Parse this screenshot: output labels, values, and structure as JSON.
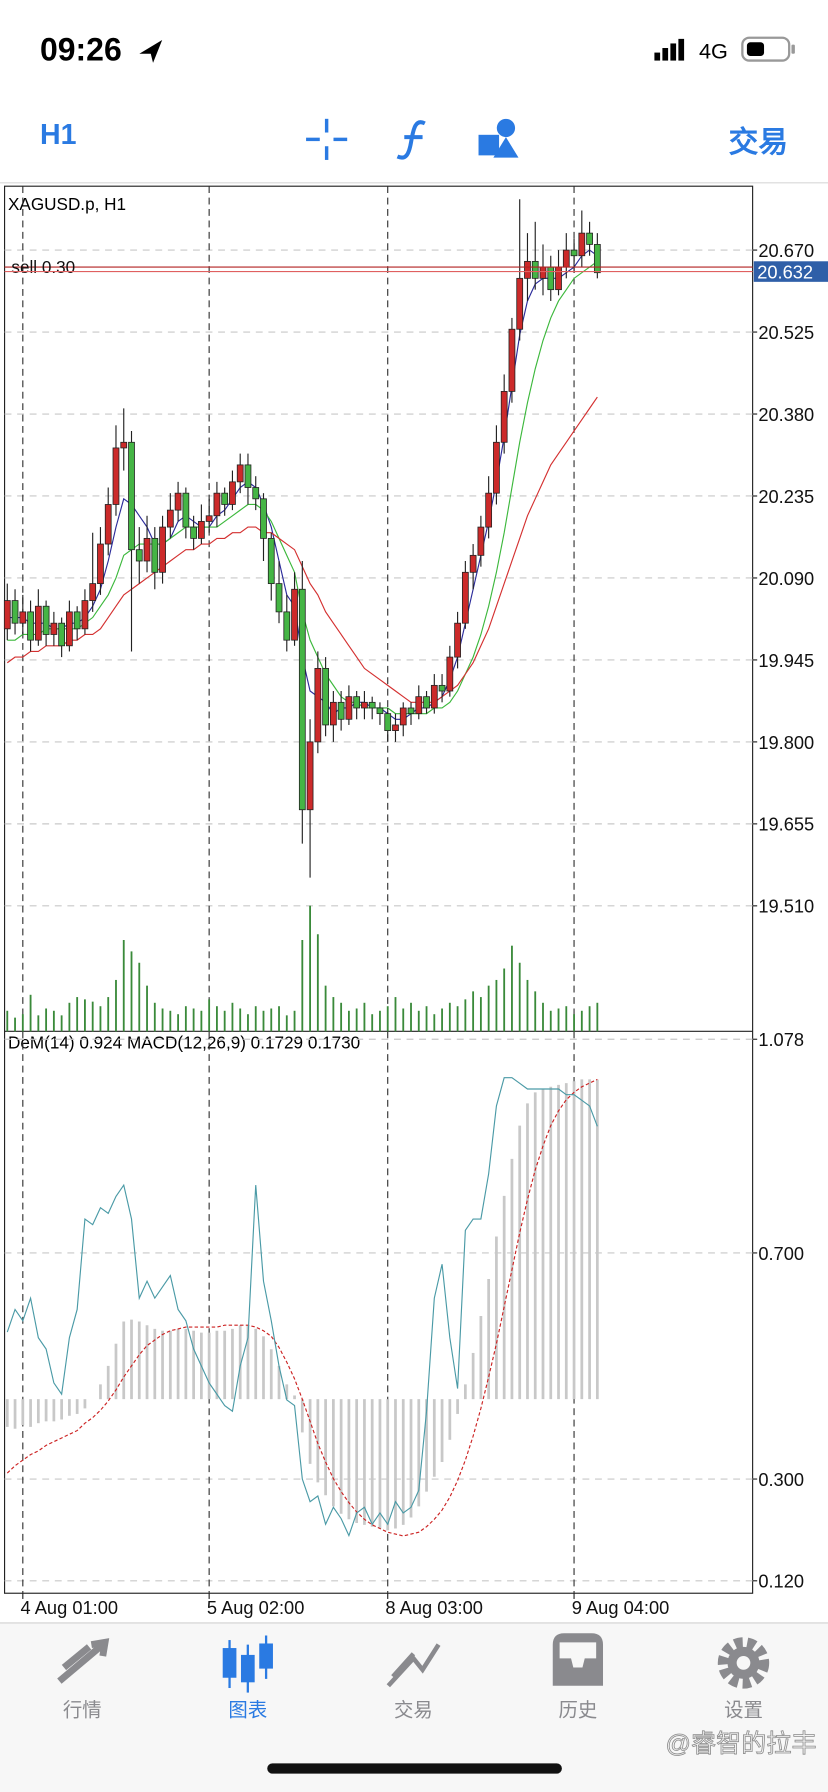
{
  "status_bar": {
    "time": "09:26",
    "network": "4G"
  },
  "toolbar": {
    "timeframe": "H1",
    "trade": "交易"
  },
  "chart_data": [
    {
      "type": "candlestick",
      "title": "XAGUSD.p, H1",
      "ohlc": [
        [
          20.0,
          20.08,
          19.98,
          20.05
        ],
        [
          20.05,
          20.07,
          19.99,
          20.01
        ],
        [
          20.01,
          20.06,
          19.99,
          20.03
        ],
        [
          20.03,
          20.05,
          19.96,
          19.98
        ],
        [
          19.98,
          20.07,
          19.97,
          20.04
        ],
        [
          20.04,
          20.05,
          19.97,
          19.99
        ],
        [
          19.99,
          20.03,
          19.97,
          20.01
        ],
        [
          20.01,
          20.02,
          19.95,
          19.97
        ],
        [
          19.97,
          20.05,
          19.96,
          20.03
        ],
        [
          20.03,
          20.04,
          19.98,
          20.0
        ],
        [
          20.0,
          20.07,
          19.99,
          20.05
        ],
        [
          20.05,
          20.17,
          20.03,
          20.08
        ],
        [
          20.08,
          20.18,
          20.06,
          20.15
        ],
        [
          20.15,
          20.25,
          20.13,
          20.22
        ],
        [
          20.22,
          20.36,
          20.2,
          20.32
        ],
        [
          20.32,
          20.39,
          20.28,
          20.33
        ],
        [
          20.33,
          20.35,
          19.96,
          20.14
        ],
        [
          20.14,
          20.18,
          20.08,
          20.12
        ],
        [
          20.12,
          20.2,
          20.1,
          20.16
        ],
        [
          20.16,
          20.18,
          20.07,
          20.1
        ],
        [
          20.1,
          20.2,
          20.08,
          20.18
        ],
        [
          20.18,
          20.24,
          20.16,
          20.21
        ],
        [
          20.21,
          20.26,
          20.19,
          20.24
        ],
        [
          20.24,
          20.25,
          20.16,
          20.18
        ],
        [
          20.18,
          20.2,
          20.14,
          20.16
        ],
        [
          20.16,
          20.22,
          20.15,
          20.19
        ],
        [
          20.19,
          20.23,
          20.17,
          20.2
        ],
        [
          20.2,
          20.26,
          20.18,
          20.24
        ],
        [
          20.24,
          20.25,
          20.2,
          20.22
        ],
        [
          20.22,
          20.28,
          20.21,
          20.26
        ],
        [
          20.26,
          20.31,
          20.24,
          20.29
        ],
        [
          20.29,
          20.31,
          20.22,
          20.25
        ],
        [
          20.25,
          20.27,
          20.21,
          20.23
        ],
        [
          20.23,
          20.24,
          20.12,
          20.16
        ],
        [
          20.16,
          20.17,
          20.05,
          20.08
        ],
        [
          20.08,
          20.12,
          20.01,
          20.03
        ],
        [
          20.03,
          20.06,
          19.96,
          19.98
        ],
        [
          19.98,
          20.1,
          19.97,
          20.07
        ],
        [
          20.07,
          20.12,
          19.62,
          19.68
        ],
        [
          19.68,
          19.84,
          19.56,
          19.8
        ],
        [
          19.8,
          19.96,
          19.78,
          19.93
        ],
        [
          19.93,
          19.95,
          19.81,
          19.83
        ],
        [
          19.83,
          19.89,
          19.8,
          19.87
        ],
        [
          19.87,
          19.89,
          19.82,
          19.84
        ],
        [
          19.84,
          19.9,
          19.83,
          19.88
        ],
        [
          19.88,
          19.89,
          19.84,
          19.86
        ],
        [
          19.86,
          19.89,
          19.84,
          19.87
        ],
        [
          19.87,
          19.88,
          19.84,
          19.86
        ],
        [
          19.86,
          19.87,
          19.83,
          19.85
        ],
        [
          19.85,
          19.86,
          19.8,
          19.82
        ],
        [
          19.82,
          19.85,
          19.8,
          19.83
        ],
        [
          19.83,
          19.87,
          19.81,
          19.86
        ],
        [
          19.86,
          19.87,
          19.83,
          19.85
        ],
        [
          19.85,
          19.9,
          19.84,
          19.88
        ],
        [
          19.88,
          19.89,
          19.85,
          19.86
        ],
        [
          19.86,
          19.92,
          19.85,
          19.9
        ],
        [
          19.9,
          19.92,
          19.87,
          19.89
        ],
        [
          19.89,
          19.97,
          19.88,
          19.95
        ],
        [
          19.95,
          20.03,
          19.93,
          20.01
        ],
        [
          20.01,
          20.12,
          20.0,
          20.1
        ],
        [
          20.1,
          20.15,
          20.07,
          20.13
        ],
        [
          20.13,
          20.2,
          20.11,
          20.18
        ],
        [
          20.18,
          20.27,
          20.16,
          20.24
        ],
        [
          20.24,
          20.36,
          20.22,
          20.33
        ],
        [
          20.33,
          20.45,
          20.31,
          20.42
        ],
        [
          20.42,
          20.55,
          20.4,
          20.53
        ],
        [
          20.53,
          20.76,
          20.51,
          20.62
        ],
        [
          20.62,
          20.7,
          20.58,
          20.65
        ],
        [
          20.65,
          20.72,
          20.6,
          20.62
        ],
        [
          20.62,
          20.68,
          20.59,
          20.64
        ],
        [
          20.64,
          20.66,
          20.58,
          20.6
        ],
        [
          20.6,
          20.67,
          20.59,
          20.64
        ],
        [
          20.64,
          20.7,
          20.62,
          20.67
        ],
        [
          20.67,
          20.69,
          20.63,
          20.66
        ],
        [
          20.66,
          20.74,
          20.64,
          20.7
        ],
        [
          20.7,
          20.72,
          20.66,
          20.68
        ],
        [
          20.68,
          20.7,
          20.62,
          20.63
        ]
      ],
      "volume": [
        18,
        12,
        15,
        32,
        14,
        20,
        18,
        14,
        25,
        30,
        28,
        26,
        22,
        30,
        45,
        80,
        70,
        60,
        40,
        25,
        20,
        18,
        15,
        22,
        20,
        18,
        28,
        22,
        18,
        25,
        20,
        15,
        22,
        18,
        20,
        22,
        14,
        18,
        80,
        110,
        85,
        40,
        30,
        25,
        18,
        20,
        25,
        15,
        18,
        22,
        30,
        20,
        25,
        18,
        22,
        15,
        20,
        25,
        22,
        28,
        35,
        30,
        40,
        45,
        55,
        75,
        60,
        45,
        35,
        25,
        18,
        20,
        22,
        15,
        18,
        22,
        25
      ],
      "overlays": [
        {
          "color": "#2b2b9a",
          "values": [
            20.02,
            20.02,
            20.02,
            20.01,
            20.01,
            20.01,
            20.0,
            20.0,
            20.01,
            20.01,
            20.02,
            20.04,
            20.07,
            20.12,
            20.18,
            20.23,
            20.22,
            20.2,
            20.18,
            20.15,
            20.15,
            20.16,
            20.19,
            20.2,
            20.19,
            20.18,
            20.18,
            20.2,
            20.21,
            20.23,
            20.25,
            20.26,
            20.25,
            20.22,
            20.18,
            20.12,
            20.06,
            20.04,
            19.95,
            19.89,
            19.88,
            19.87,
            19.85,
            19.86,
            19.86,
            19.87,
            19.87,
            19.86,
            19.86,
            19.85,
            19.84,
            19.84,
            19.85,
            19.86,
            19.86,
            19.87,
            19.88,
            19.91,
            19.95,
            20.01,
            20.07,
            20.13,
            20.19,
            20.26,
            20.34,
            20.43,
            20.52,
            20.58,
            20.61,
            20.62,
            20.62,
            20.62,
            20.63,
            20.64,
            20.66,
            20.67,
            20.66
          ]
        },
        {
          "color": "#3cb83c",
          "values": [
            19.98,
            19.98,
            19.99,
            19.99,
            19.99,
            20.0,
            20.0,
            20.0,
            20.0,
            20.0,
            20.01,
            20.02,
            20.04,
            20.06,
            20.09,
            20.13,
            20.14,
            20.15,
            20.15,
            20.15,
            20.15,
            20.16,
            20.17,
            20.18,
            20.18,
            20.18,
            20.18,
            20.18,
            20.19,
            20.2,
            20.21,
            20.22,
            20.22,
            20.21,
            20.19,
            20.16,
            20.13,
            20.1,
            20.03,
            19.98,
            19.95,
            19.92,
            19.9,
            19.88,
            19.87,
            19.87,
            19.86,
            19.86,
            19.86,
            19.86,
            19.85,
            19.85,
            19.85,
            19.85,
            19.85,
            19.86,
            19.86,
            19.87,
            19.89,
            19.92,
            19.95,
            19.99,
            20.04,
            20.1,
            20.17,
            20.25,
            20.33,
            20.4,
            20.46,
            20.51,
            20.55,
            20.58,
            20.6,
            20.62,
            20.63,
            20.64,
            20.65
          ]
        },
        {
          "color": "#d43030",
          "values": [
            19.94,
            19.95,
            19.95,
            19.96,
            19.96,
            19.97,
            19.97,
            19.97,
            19.98,
            19.98,
            19.99,
            19.99,
            20.0,
            20.02,
            20.04,
            20.06,
            20.07,
            20.08,
            20.09,
            20.1,
            20.11,
            20.12,
            20.13,
            20.14,
            20.14,
            20.15,
            20.15,
            20.16,
            20.16,
            20.17,
            20.17,
            20.18,
            20.18,
            20.17,
            20.17,
            20.16,
            20.15,
            20.14,
            20.11,
            20.08,
            20.06,
            20.03,
            20.01,
            19.99,
            19.97,
            19.95,
            19.93,
            19.92,
            19.91,
            19.9,
            19.89,
            19.88,
            19.87,
            19.87,
            19.87,
            19.87,
            19.88,
            19.89,
            19.9,
            19.92,
            19.94,
            19.97,
            20.0,
            20.04,
            20.08,
            20.12,
            20.16,
            20.2,
            20.23,
            20.26,
            20.29,
            20.31,
            20.33,
            20.35,
            20.37,
            20.39,
            20.41
          ]
        }
      ],
      "order": {
        "label": "sell 0.30",
        "value": 20.64,
        "color": "#b22222"
      },
      "price": 20.632,
      "price_color": "#2f5fa8",
      "up_color": "#cc2a2a",
      "down_color": "#45b545",
      "volume_color": "#3a8a3a",
      "xlim": [
        -0.35,
        96
      ],
      "ylim": [
        19.288,
        20.783
      ],
      "xticks": [
        {
          "value": 2,
          "label": "4 Aug 01:00"
        },
        {
          "value": 26,
          "label": "5 Aug 02:00"
        },
        {
          "value": 49,
          "label": "8 Aug 03:00"
        },
        {
          "value": 73,
          "label": "9 Aug 04:00"
        }
      ],
      "yticks": [
        {
          "value": 19.51,
          "label": "19.510"
        },
        19.655,
        {
          "value": 19.8,
          "label": "19.800"
        },
        19.945,
        {
          "value": 20.09,
          "label": "20.090"
        },
        20.235,
        {
          "value": 20.38,
          "label": "20.380"
        },
        20.525,
        {
          "value": 20.67,
          "label": "20.670"
        }
      ],
      "grid": true
    },
    {
      "type": "oscillator",
      "title": "DeM(14) 0.924 MACD(12,26,9) 0.1729 0.1730",
      "ylim": [
        0.098,
        1.092
      ],
      "y2lim": [
        -0.105,
        0.199
      ],
      "yticks": [
        {
          "value": 0.12,
          "label": "0.120"
        },
        {
          "value": 0.3,
          "label": "0.300"
        },
        {
          "value": 0.7,
          "label": "0.700"
        },
        1.078
      ],
      "dem": {
        "color": "#4a9aa6",
        "values": [
          0.56,
          0.6,
          0.58,
          0.62,
          0.55,
          0.53,
          0.47,
          0.45,
          0.55,
          0.6,
          0.76,
          0.75,
          0.78,
          0.77,
          0.8,
          0.82,
          0.76,
          0.62,
          0.65,
          0.62,
          0.64,
          0.66,
          0.6,
          0.58,
          0.53,
          0.5,
          0.47,
          0.45,
          0.43,
          0.42,
          0.5,
          0.55,
          0.82,
          0.65,
          0.58,
          0.5,
          0.44,
          0.43,
          0.3,
          0.26,
          0.27,
          0.22,
          0.25,
          0.23,
          0.2,
          0.24,
          0.25,
          0.22,
          0.24,
          0.22,
          0.26,
          0.24,
          0.25,
          0.28,
          0.42,
          0.62,
          0.68,
          0.55,
          0.46,
          0.74,
          0.76,
          0.76,
          0.84,
          0.96,
          1.01,
          1.01,
          1.0,
          0.99,
          0.99,
          0.99,
          0.99,
          0.99,
          0.98,
          0.98,
          0.97,
          0.96,
          0.924
        ]
      },
      "macd": {
        "color": "#c8c8c8",
        "axis": "y2",
        "values": [
          -0.015,
          -0.016,
          -0.014,
          -0.015,
          -0.013,
          -0.012,
          -0.012,
          -0.011,
          -0.009,
          -0.008,
          -0.005,
          0.0,
          0.008,
          0.018,
          0.03,
          0.042,
          0.043,
          0.042,
          0.04,
          0.038,
          0.037,
          0.037,
          0.038,
          0.038,
          0.037,
          0.036,
          0.036,
          0.037,
          0.037,
          0.038,
          0.04,
          0.04,
          0.038,
          0.034,
          0.027,
          0.018,
          0.008,
          0.002,
          -0.018,
          -0.035,
          -0.045,
          -0.052,
          -0.058,
          -0.062,
          -0.065,
          -0.067,
          -0.068,
          -0.069,
          -0.07,
          -0.071,
          -0.07,
          -0.068,
          -0.064,
          -0.058,
          -0.05,
          -0.042,
          -0.034,
          -0.022,
          -0.008,
          0.008,
          0.025,
          0.045,
          0.065,
          0.088,
          0.11,
          0.13,
          0.148,
          0.16,
          0.166,
          0.168,
          0.169,
          0.17,
          0.171,
          0.172,
          0.173,
          0.173,
          0.1729
        ]
      },
      "signal": {
        "color": "#cc2222",
        "axis": "y2",
        "values": [
          -0.04,
          -0.036,
          -0.033,
          -0.03,
          -0.028,
          -0.025,
          -0.023,
          -0.021,
          -0.019,
          -0.017,
          -0.013,
          -0.01,
          -0.006,
          -0.001,
          0.005,
          0.012,
          0.018,
          0.024,
          0.029,
          0.032,
          0.035,
          0.037,
          0.038,
          0.039,
          0.039,
          0.039,
          0.039,
          0.039,
          0.04,
          0.04,
          0.04,
          0.04,
          0.039,
          0.037,
          0.034,
          0.028,
          0.02,
          0.011,
          0.0,
          -0.012,
          -0.024,
          -0.034,
          -0.043,
          -0.05,
          -0.056,
          -0.061,
          -0.065,
          -0.068,
          -0.07,
          -0.072,
          -0.073,
          -0.074,
          -0.073,
          -0.072,
          -0.069,
          -0.065,
          -0.06,
          -0.053,
          -0.044,
          -0.033,
          -0.02,
          -0.005,
          0.012,
          0.03,
          0.05,
          0.07,
          0.09,
          0.108,
          0.124,
          0.137,
          0.148,
          0.156,
          0.162,
          0.166,
          0.169,
          0.171,
          0.173
        ]
      },
      "grid": true
    }
  ],
  "tab_bar": {
    "tabs": [
      "行情",
      "图表",
      "交易",
      "历史",
      "设置"
    ],
    "active": 1,
    "active_color": "#2a7ae2",
    "color": "#8a8a8e"
  },
  "watermark": "@睿智的拉丰"
}
